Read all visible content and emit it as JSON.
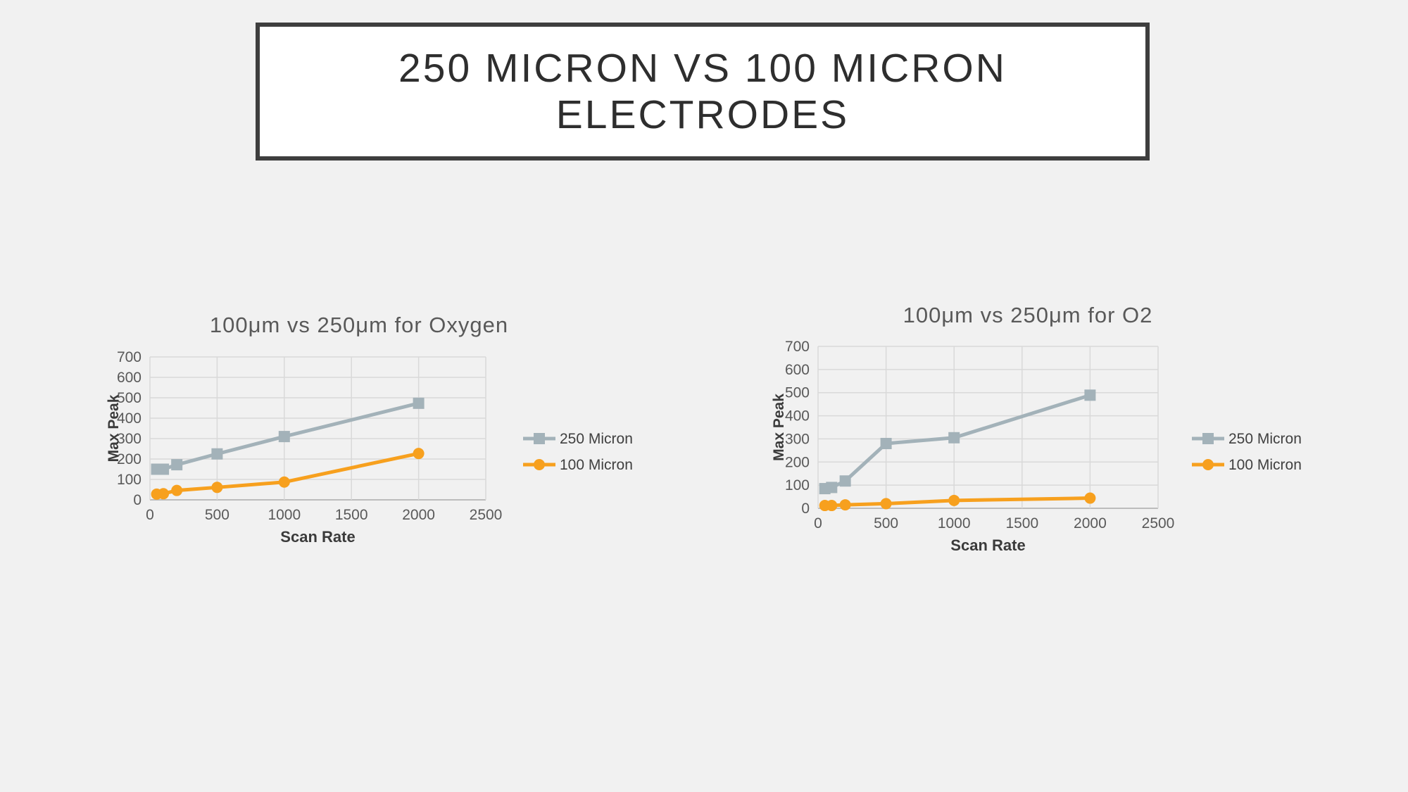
{
  "slide": {
    "background": "#f1f1f1",
    "title_lines": [
      "250 MICRON VS 100 MICRON",
      "ELECTRODES"
    ]
  },
  "chart_data": [
    {
      "type": "line",
      "title": "100μm vs 250μm  for Oxygen",
      "xlabel": "Scan Rate",
      "ylabel": "Max Peak",
      "x": [
        50,
        100,
        200,
        500,
        1000,
        2000
      ],
      "xlim": [
        0,
        2500
      ],
      "ylim": [
        0,
        700
      ],
      "x_ticks": [
        0,
        500,
        1000,
        1500,
        2000,
        2500
      ],
      "y_ticks": [
        0,
        100,
        200,
        300,
        400,
        500,
        600,
        700
      ],
      "grid": true,
      "legend_position": "right",
      "series": [
        {
          "name": "250 Micron",
          "color": "#a3b2b9",
          "marker": "square",
          "values": [
            150,
            150,
            172,
            225,
            310,
            473
          ]
        },
        {
          "name": "100 Micron",
          "color": "#f7a01e",
          "marker": "circle",
          "values": [
            28,
            30,
            46,
            61,
            87,
            227
          ]
        }
      ]
    },
    {
      "type": "line",
      "title": "100μm vs 250μm  for O2",
      "xlabel": "Scan Rate",
      "ylabel": "Max Peak",
      "x": [
        50,
        100,
        200,
        500,
        1000,
        2000
      ],
      "xlim": [
        0,
        2500
      ],
      "ylim": [
        0,
        700
      ],
      "x_ticks": [
        0,
        500,
        1000,
        1500,
        2000,
        2500
      ],
      "y_ticks": [
        0,
        100,
        200,
        300,
        400,
        500,
        600,
        700
      ],
      "grid": true,
      "legend_position": "right",
      "series": [
        {
          "name": "250 Micron",
          "color": "#a3b2b9",
          "marker": "square",
          "values": [
            85,
            90,
            118,
            280,
            305,
            489
          ]
        },
        {
          "name": "100 Micron",
          "color": "#f7a01e",
          "marker": "circle",
          "values": [
            12,
            12,
            15,
            20,
            34,
            44
          ]
        }
      ]
    }
  ],
  "style_colors": {
    "grid": "#d9d9d9",
    "axis": "#bcbcbc",
    "tick_text": "#595959",
    "chart_title": "#595959",
    "axis_title": "#3b3b3b",
    "legend_text": "#404040"
  }
}
